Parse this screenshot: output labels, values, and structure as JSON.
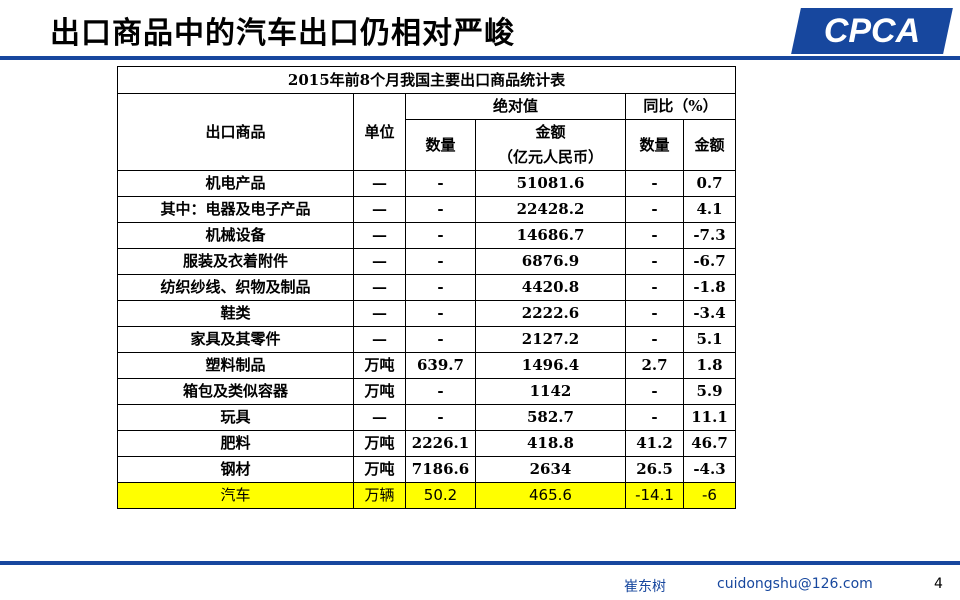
{
  "title": "出口商品中的汽车出口仍相对严峻",
  "logo_text": "CPCA",
  "footer": {
    "name": "崔东树",
    "email": "cuidongshu@126.com",
    "page": "4"
  },
  "table": {
    "caption": "2015年前8个月我国主要出口商品统计表",
    "headers": {
      "product": "出口商品",
      "unit": "单位",
      "absolute": "绝对值",
      "yoy": "同比（%）",
      "qty": "数量",
      "amount": "金额",
      "amount_unit": "（亿元人民币）",
      "yoy_qty": "数量",
      "yoy_amount": "金额"
    },
    "rows": [
      {
        "product": "机电产品",
        "unit": "—",
        "qty": "-",
        "amount": "51081.6",
        "yoy_qty": "-",
        "yoy_amount": "0.7"
      },
      {
        "product": "其中：电器及电子产品",
        "unit": "—",
        "qty": "-",
        "amount": "22428.2",
        "yoy_qty": "-",
        "yoy_amount": "4.1"
      },
      {
        "product": "机械设备",
        "unit": "—",
        "qty": "-",
        "amount": "14686.7",
        "yoy_qty": "-",
        "yoy_amount": "-7.3"
      },
      {
        "product": "服装及衣着附件",
        "unit": "—",
        "qty": "-",
        "amount": "6876.9",
        "yoy_qty": "-",
        "yoy_amount": "-6.7"
      },
      {
        "product": "纺织纱线、织物及制品",
        "unit": "—",
        "qty": "-",
        "amount": "4420.8",
        "yoy_qty": "-",
        "yoy_amount": "-1.8"
      },
      {
        "product": "鞋类",
        "unit": "—",
        "qty": "-",
        "amount": "2222.6",
        "yoy_qty": "-",
        "yoy_amount": "-3.4"
      },
      {
        "product": "家具及其零件",
        "unit": "—",
        "qty": "-",
        "amount": "2127.2",
        "yoy_qty": "-",
        "yoy_amount": "5.1"
      },
      {
        "product": "塑料制品",
        "unit": "万吨",
        "qty": "639.7",
        "amount": "1496.4",
        "yoy_qty": "2.7",
        "yoy_amount": "1.8"
      },
      {
        "product": "箱包及类似容器",
        "unit": "万吨",
        "qty": "-",
        "amount": "1142",
        "yoy_qty": "-",
        "yoy_amount": "5.9"
      },
      {
        "product": "玩具",
        "unit": "—",
        "qty": "-",
        "amount": "582.7",
        "yoy_qty": "-",
        "yoy_amount": "11.1"
      },
      {
        "product": "肥料",
        "unit": "万吨",
        "qty": "2226.1",
        "amount": "418.8",
        "yoy_qty": "41.2",
        "yoy_amount": "46.7"
      },
      {
        "product": "钢材",
        "unit": "万吨",
        "qty": "7186.6",
        "amount": "2634",
        "yoy_qty": "26.5",
        "yoy_amount": "-4.3"
      },
      {
        "product": "汽车",
        "unit": "万辆",
        "qty": "50.2",
        "amount": "465.6",
        "yoy_qty": "-14.1",
        "yoy_amount": "-6",
        "highlight": true
      }
    ]
  }
}
